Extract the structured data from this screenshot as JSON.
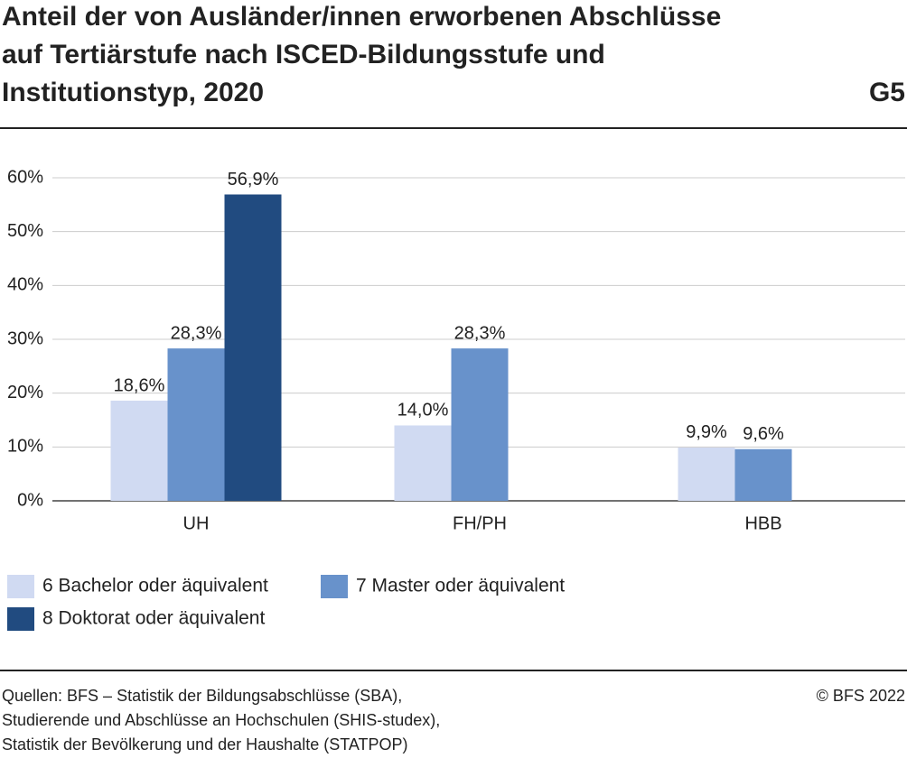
{
  "chart_data": {
    "type": "bar",
    "title_lines": [
      "Anteil der von Ausländer/innen erworbenen Abschlüsse",
      "auf Tertiärstufe nach ISCED-Bildungsstufe und",
      "Institutionstyp, 2020"
    ],
    "figure_id": "G5",
    "categories": [
      "UH",
      "FH/PH",
      "HBB"
    ],
    "series": [
      {
        "name": "6 Bachelor oder äquivalent",
        "color": "#d0daf2",
        "values": [
          18.6,
          14.0,
          9.9
        ],
        "value_labels": [
          "18,6%",
          "14,0%",
          "9,9%"
        ]
      },
      {
        "name": "7 Master oder äquivalent",
        "color": "#6892cb",
        "values": [
          28.3,
          28.3,
          9.6
        ],
        "value_labels": [
          "28,3%",
          "28,3%",
          "9,6%"
        ]
      },
      {
        "name": "8 Doktorat oder äquivalent",
        "color": "#214b80",
        "values": [
          56.9,
          null,
          null
        ],
        "value_labels": [
          "56,9%",
          null,
          null
        ]
      }
    ],
    "ylim": [
      0,
      60
    ],
    "yticks": [
      {
        "value": 0,
        "label": "0%"
      },
      {
        "value": 10,
        "label": "10%"
      },
      {
        "value": 20,
        "label": "20%"
      },
      {
        "value": 30,
        "label": "30%"
      },
      {
        "value": 40,
        "label": "40%"
      },
      {
        "value": 50,
        "label": "50%"
      },
      {
        "value": 60,
        "label": "60%"
      }
    ],
    "grid": true,
    "source_lines": [
      "Quellen: BFS – Statistik der Bildungsabschlüsse (SBA),",
      "Studierende und Abschlüsse an Hochschulen (SHIS-studex),",
      "Statistik der Bevölkerung und der Haushalte (STATPOP)"
    ],
    "copyright": "© BFS 2022"
  }
}
